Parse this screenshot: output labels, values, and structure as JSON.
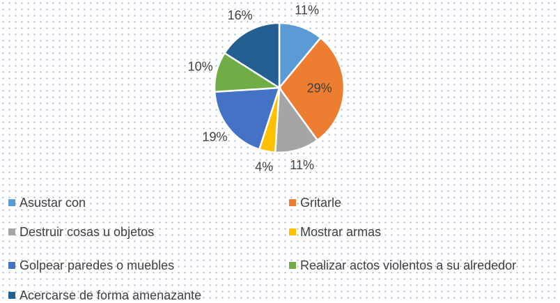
{
  "chart_data": {
    "type": "pie",
    "categories": [
      "Asustar con",
      "Gritarle",
      "Destruir cosas u objetos",
      "Mostrar armas",
      "Golpear paredes o muebles",
      "Realizar actos violentos a su alrededor",
      "Acercarse de forma amenazante"
    ],
    "values": [
      11,
      29,
      11,
      4,
      19,
      10,
      16
    ],
    "value_labels": [
      "11%",
      "29%",
      "11%",
      "4%",
      "19%",
      "10%",
      "16%"
    ],
    "colors": [
      "#5b9bd5",
      "#ed7d31",
      "#a5a5a5",
      "#ffc000",
      "#4472c4",
      "#70ad47",
      "#255e91"
    ],
    "legend": "bottom"
  }
}
